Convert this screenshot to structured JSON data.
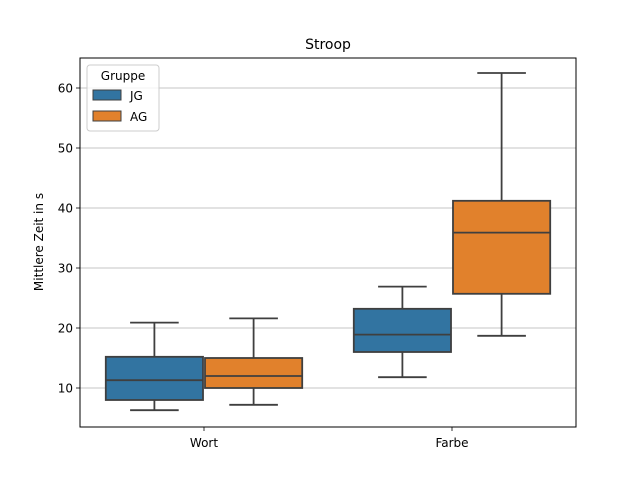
{
  "chart_data": {
    "type": "box",
    "title": "Stroop",
    "xlabel": "",
    "ylabel": "Mittlere Zeit in s",
    "categories": [
      "Wort",
      "Farbe"
    ],
    "ylim": [
      3.5,
      65
    ],
    "yticks": [
      10,
      20,
      30,
      40,
      50,
      60
    ],
    "grid": "y",
    "legend": {
      "title": "Gruppe",
      "placement": "top-left"
    },
    "series": [
      {
        "name": "JG",
        "color": "#3274a1",
        "boxes": [
          {
            "whisker_low": 6.3,
            "q1": 8.0,
            "median": 11.3,
            "q3": 15.2,
            "whisker_high": 20.9
          },
          {
            "whisker_low": 11.8,
            "q1": 16.0,
            "median": 18.9,
            "q3": 23.2,
            "whisker_high": 26.9
          }
        ]
      },
      {
        "name": "AG",
        "color": "#e1812c",
        "boxes": [
          {
            "whisker_low": 7.2,
            "q1": 10.0,
            "median": 12.0,
            "q3": 15.0,
            "whisker_high": 21.6
          },
          {
            "whisker_low": 18.7,
            "q1": 25.7,
            "median": 35.9,
            "q3": 41.2,
            "whisker_high": 62.5
          }
        ]
      }
    ]
  }
}
